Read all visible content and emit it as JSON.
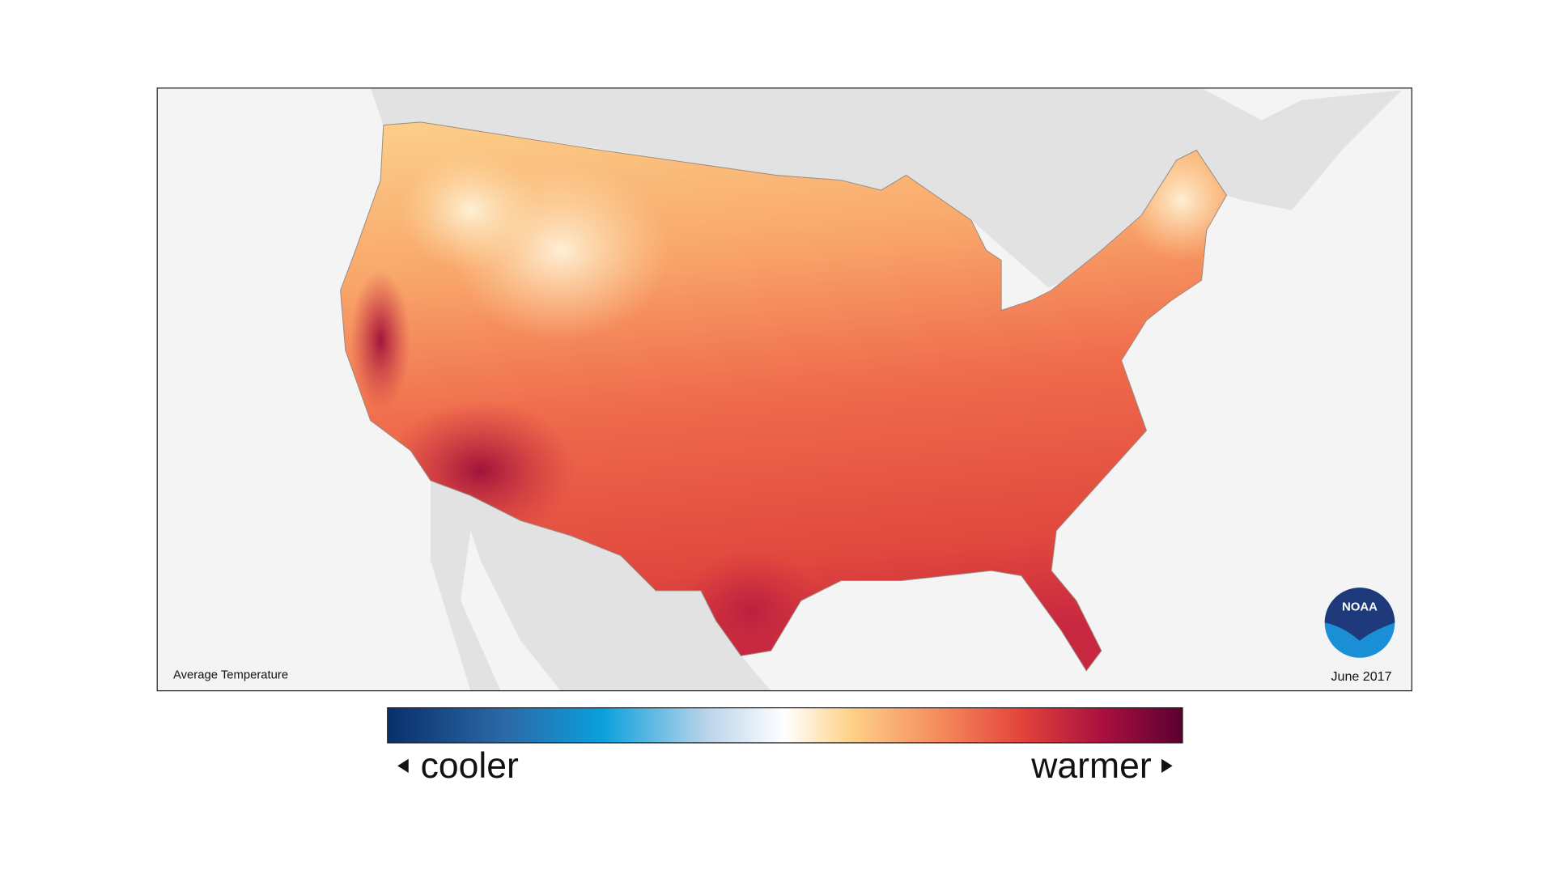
{
  "map": {
    "title": "Average Temperature",
    "date": "June 2017",
    "logo": "NOAA"
  },
  "legend": {
    "low_label": "cooler",
    "high_label": "warmer"
  }
}
